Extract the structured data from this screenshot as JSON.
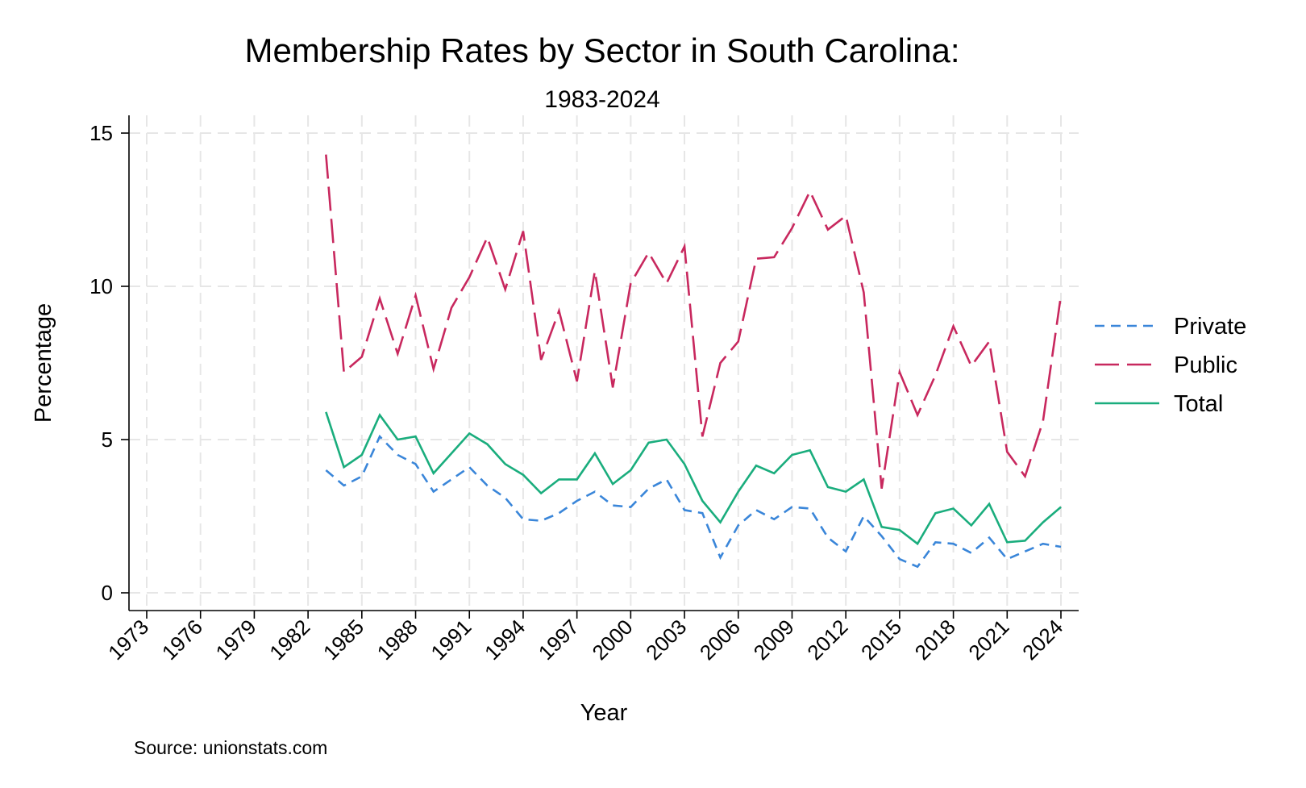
{
  "chart_data": {
    "type": "line",
    "title": "Membership Rates by Sector in South Carolina:",
    "subtitle": "1983-2024",
    "xlabel": "Year",
    "ylabel": "Percentage",
    "source": "Source: unionstats.com",
    "xlim": [
      1973,
      2024
    ],
    "ylim": [
      0,
      15
    ],
    "xticks": [
      "1973",
      "1976",
      "1979",
      "1982",
      "1985",
      "1988",
      "1991",
      "1994",
      "1997",
      "2000",
      "2003",
      "2006",
      "2009",
      "2012",
      "2015",
      "2018",
      "2021",
      "2024"
    ],
    "yticks": [
      "0",
      "5",
      "10",
      "15"
    ],
    "grid": true,
    "legend_position": "right",
    "x": [
      1983,
      1984,
      1985,
      1986,
      1987,
      1988,
      1989,
      1990,
      1991,
      1992,
      1993,
      1994,
      1995,
      1996,
      1997,
      1998,
      1999,
      2000,
      2001,
      2002,
      2003,
      2004,
      2005,
      2006,
      2007,
      2008,
      2009,
      2010,
      2011,
      2012,
      2013,
      2014,
      2015,
      2016,
      2017,
      2018,
      2019,
      2020,
      2021,
      2022,
      2023,
      2024
    ],
    "series": [
      {
        "name": "Private",
        "color": "#3a86d9",
        "dash": "short-dash",
        "values": [
          4.0,
          3.5,
          3.8,
          5.1,
          4.5,
          4.2,
          3.3,
          3.7,
          4.1,
          3.5,
          3.1,
          2.4,
          2.35,
          2.6,
          3.0,
          3.3,
          2.85,
          2.8,
          3.4,
          3.7,
          2.7,
          2.6,
          1.15,
          2.2,
          2.7,
          2.4,
          2.8,
          2.75,
          1.8,
          1.35,
          2.5,
          1.85,
          1.1,
          0.85,
          1.65,
          1.6,
          1.3,
          1.8,
          1.1,
          1.35,
          1.6,
          1.5
        ]
      },
      {
        "name": "Public",
        "color": "#c8285e",
        "dash": "long-dash",
        "values": [
          14.3,
          7.2,
          7.7,
          9.6,
          7.8,
          9.7,
          7.3,
          9.3,
          10.3,
          11.6,
          9.9,
          11.8,
          7.6,
          9.2,
          6.9,
          10.5,
          6.7,
          10.1,
          11.1,
          10.1,
          11.3,
          5.1,
          7.5,
          8.2,
          10.9,
          10.95,
          11.9,
          13.1,
          11.85,
          12.3,
          9.8,
          3.4,
          7.2,
          5.8,
          7.1,
          8.7,
          7.4,
          8.2,
          4.6,
          3.8,
          5.6,
          9.7
        ]
      },
      {
        "name": "Total",
        "color": "#1aad7d",
        "dash": "solid",
        "values": [
          5.9,
          4.1,
          4.5,
          5.8,
          5.0,
          5.1,
          3.9,
          4.55,
          5.2,
          4.85,
          4.2,
          3.85,
          3.25,
          3.7,
          3.7,
          4.55,
          3.55,
          4.0,
          4.9,
          5.0,
          4.2,
          3.0,
          2.3,
          3.3,
          4.15,
          3.9,
          4.5,
          4.65,
          3.45,
          3.3,
          3.7,
          2.15,
          2.05,
          1.6,
          2.6,
          2.75,
          2.2,
          2.9,
          1.65,
          1.7,
          2.3,
          2.8
        ]
      }
    ]
  }
}
